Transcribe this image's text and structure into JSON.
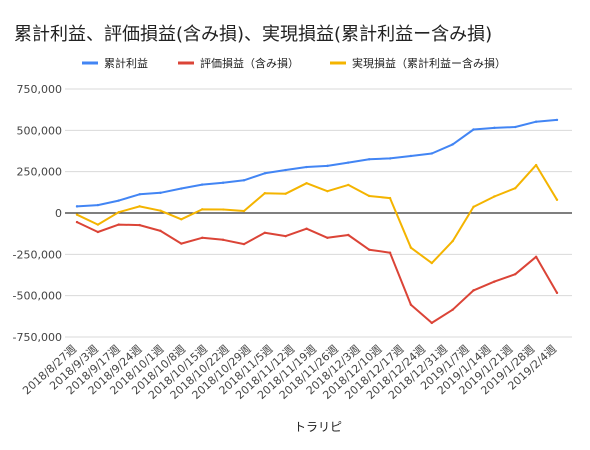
{
  "chart_data": {
    "type": "line",
    "title": "累計利益、評価損益(含み損)、実現損益(累計利益ー含み損)",
    "xlabel": "トラリピ",
    "ylabel": "",
    "ylim": [
      -750000,
      750000
    ],
    "yticks": [
      750000,
      500000,
      250000,
      0,
      -250000,
      -500000,
      -750000
    ],
    "ytick_labels": [
      "750,000",
      "500,000",
      "250,000",
      "0",
      "-250,000",
      "-500,000",
      "-750,000"
    ],
    "grid": true,
    "legend_position": "top",
    "categories": [
      "2018/8/27週",
      "2018/9/3週",
      "2018/9/10週",
      "2018/9/17週",
      "2018/9/24週",
      "2018/10/1週",
      "2018/10/8週",
      "2018/10/15週",
      "2018/10/22週",
      "2018/10/29週",
      "2018/11/5週",
      "2018/11/12週",
      "2018/11/19週",
      "2018/11/26週",
      "2018/12/3週",
      "2018/12/10週",
      "2018/12/17週",
      "2018/12/24週",
      "2018/12/31週",
      "2019/1/7週",
      "2019/1/14週",
      "2019/1/21週",
      "2019/1/28週",
      "2019/2/4週"
    ],
    "tick_labels": [
      "2018/8/27週",
      "2018/9/3週",
      "2018/9/17週",
      "2018/9/24週",
      "2018/10/1週",
      "2018/10/8週",
      "2018/10/15週",
      "2018/10/22週",
      "2018/10/29週",
      "2018/11/5週",
      "2018/11/12週",
      "2018/11/19週",
      "2018/11/26週",
      "2018/12/3週",
      "2018/12/10週",
      "2018/12/17週",
      "2018/12/24週",
      "2018/12/31週",
      "2019/1/7週",
      "2019/1/14週",
      "2019/1/21週",
      "2019/1/28週",
      "2019/2/4週"
    ],
    "series": [
      {
        "name": "累計利益",
        "color": "#4285f4",
        "values": [
          40000,
          48000,
          75000,
          113000,
          122000,
          148000,
          172000,
          183000,
          198000,
          240000,
          260000,
          278000,
          285000,
          305000,
          325000,
          330000,
          345000,
          360000,
          415000,
          505000,
          515000,
          520000,
          552000,
          563000
        ]
      },
      {
        "name": "評価損益（含み損）",
        "color": "#db4437",
        "values": [
          -55000,
          -115000,
          -70000,
          -73000,
          -108000,
          -185000,
          -150000,
          -162000,
          -188000,
          -120000,
          -140000,
          -95000,
          -150000,
          -133000,
          -222000,
          -240000,
          -555000,
          -665000,
          -585000,
          -468000,
          -415000,
          -370000,
          -265000,
          -483000
        ]
      },
      {
        "name": "実現損益（累計利益ー含み損）",
        "color": "#f4b400",
        "values": [
          -10000,
          -70000,
          5000,
          40000,
          14000,
          -38000,
          22000,
          21000,
          12000,
          120000,
          117000,
          180000,
          132000,
          170000,
          103000,
          90000,
          -210000,
          -303000,
          -170000,
          37000,
          100000,
          150000,
          290000,
          80000
        ]
      }
    ]
  }
}
